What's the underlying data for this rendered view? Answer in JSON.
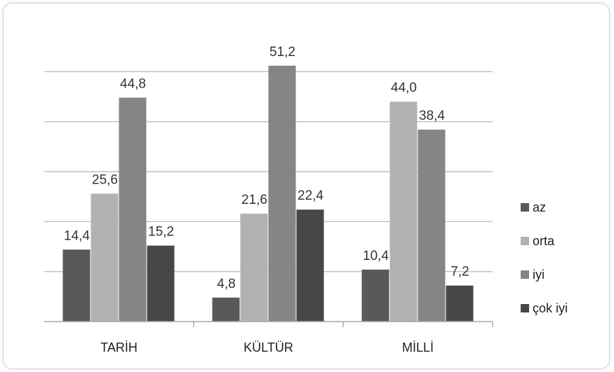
{
  "chart_data": {
    "type": "bar",
    "title": "",
    "xlabel": "",
    "ylabel": "",
    "categories": [
      "TARİH",
      "KÜLTÜR",
      "MİLLİ"
    ],
    "series": [
      {
        "name": "az",
        "color": "#595959",
        "values": [
          14.4,
          4.8,
          10.4
        ]
      },
      {
        "name": "orta",
        "color": "#b2b2b2",
        "values": [
          25.6,
          21.6,
          44.0
        ]
      },
      {
        "name": "iyi",
        "color": "#858585",
        "values": [
          44.8,
          51.2,
          38.4
        ]
      },
      {
        "name": "çok iyi",
        "color": "#474747",
        "values": [
          15.2,
          22.4,
          7.2
        ]
      }
    ],
    "value_labels": [
      [
        "14,4",
        "4,8",
        "10,4"
      ],
      [
        "25,6",
        "21,6",
        "44,0"
      ],
      [
        "44,8",
        "51,2",
        "38,4"
      ],
      [
        "15,2",
        "22,4",
        "7,2"
      ]
    ],
    "ylim": [
      0,
      60
    ],
    "yticks": [
      0,
      10,
      20,
      30,
      40,
      50
    ],
    "y_axis_labels_shown": false,
    "grid": true,
    "legend_position": "right"
  }
}
